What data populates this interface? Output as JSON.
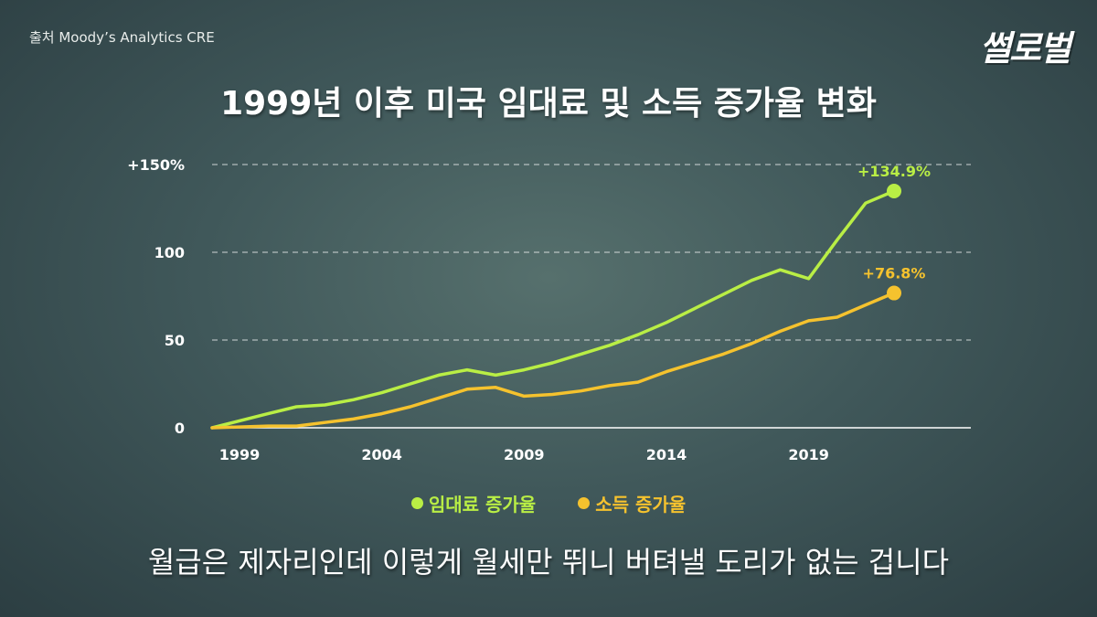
{
  "source": "출처 Moody’s Analytics CRE",
  "logo": "썰로벌",
  "subtitle": "월급은 제자리인데 이렇게 월세만 뛰니 버텨낼 도리가 없는 겁니다",
  "colors": {
    "rent": "#b9ee45",
    "income": "#f5c22e",
    "grid": "#ffffff"
  },
  "chart_data": {
    "type": "line",
    "title": "1999년 이후 미국 임대료 및 소득 증가율 변화",
    "x": [
      1999,
      2000,
      2001,
      2002,
      2003,
      2004,
      2005,
      2006,
      2007,
      2008,
      2009,
      2010,
      2011,
      2012,
      2013,
      2014,
      2015,
      2016,
      2017,
      2018,
      2019,
      2020,
      2021,
      2022
    ],
    "xticks": [
      "1999",
      "2004",
      "2009",
      "2014",
      "2019"
    ],
    "xtick_values": [
      1999,
      2004,
      2009,
      2014,
      2019
    ],
    "yticks": [
      "0",
      "50",
      "100",
      "+150%"
    ],
    "ytick_values": [
      0,
      50,
      100,
      150
    ],
    "ylim": [
      0,
      150
    ],
    "xlim": [
      1999,
      2022
    ],
    "grid": "horizontal dashed",
    "legend_position": "bottom",
    "series": [
      {
        "name": "임대료 증가율",
        "color": "#b9ee45",
        "values": [
          0,
          8,
          12,
          13,
          16,
          20,
          25,
          30,
          33,
          30,
          33,
          37,
          42,
          47,
          53,
          60,
          68,
          76,
          84,
          90,
          85,
          107,
          128,
          134.9
        ],
        "end_label": "+134.9%"
      },
      {
        "name": "소득 증가율",
        "color": "#f5c22e",
        "values": [
          0,
          1,
          1,
          3,
          5,
          8,
          12,
          17,
          22,
          23,
          18,
          19,
          21,
          24,
          26,
          32,
          37,
          42,
          48,
          55,
          61,
          63,
          70,
          76.8
        ],
        "end_label": "+76.8%"
      }
    ]
  }
}
